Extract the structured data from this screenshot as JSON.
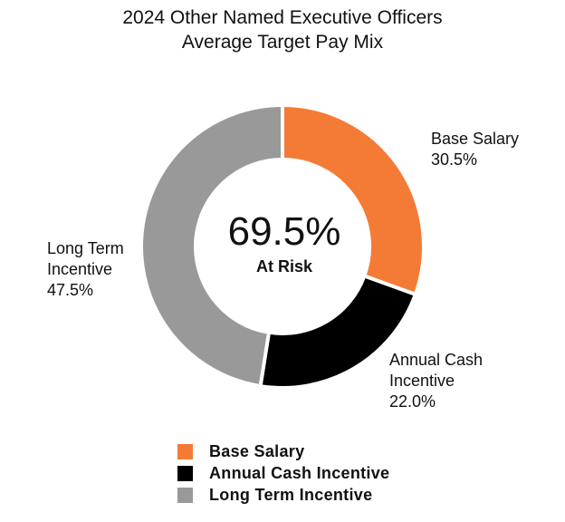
{
  "chart_data": {
    "type": "pie",
    "style": "donut",
    "title_lines": [
      "2024 Other Named Executive Officers",
      "Average Target Pay Mix"
    ],
    "center_value": "69.5%",
    "center_label": "At Risk",
    "slices": [
      {
        "name": "Base Salary",
        "value": 30.5,
        "label_lines": [
          "Base Salary",
          "30.5%"
        ],
        "color": "#F47B36"
      },
      {
        "name": "Annual Cash Incentive",
        "value": 22.0,
        "label_lines": [
          "Annual Cash",
          "Incentive",
          "22.0%"
        ],
        "color": "#000000"
      },
      {
        "name": "Long Term Incentive",
        "value": 47.5,
        "label_lines": [
          "Long Term",
          "Incentive",
          "47.5%"
        ],
        "color": "#999999"
      }
    ],
    "legend": [
      "Base Salary",
      "Annual Cash Incentive",
      "Long Term Incentive"
    ]
  }
}
